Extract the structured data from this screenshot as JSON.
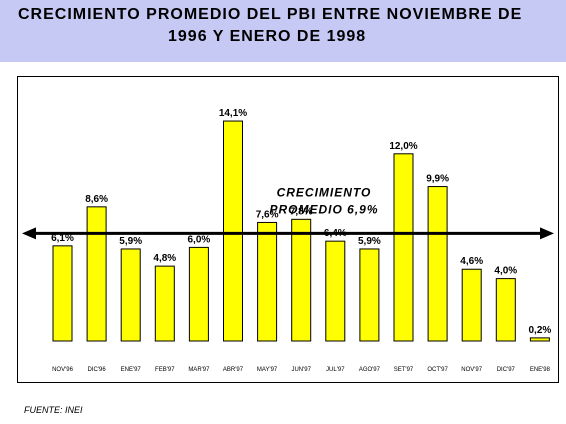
{
  "title": {
    "line1": "CRECIMIENTO PROMEDIO DEL PBI ENTRE NOVIEMBRE DE",
    "line2": "1996 Y ENERO DE 1998"
  },
  "source": "FUENTE: INEI",
  "colors": {
    "title_background": "#c7c9f5",
    "bar_fill": "#ffff00",
    "bar_stroke": "#000000"
  },
  "chart_data": {
    "type": "bar",
    "categories": [
      "NOV'96",
      "DIC'96",
      "ENE'97",
      "FEB'97",
      "MAR'97",
      "ABR'97",
      "MAY'97",
      "JUN'97",
      "JUL'97",
      "AGO'97",
      "SET'97",
      "OCT'97",
      "NOV'97",
      "DIC'97",
      "ENE'98"
    ],
    "values": [
      6.1,
      8.6,
      5.9,
      4.8,
      6.0,
      14.1,
      7.6,
      7.8,
      6.4,
      5.9,
      12.0,
      9.9,
      4.6,
      4.0,
      0.2
    ],
    "value_labels": [
      "6,1%",
      "8,6%",
      "5,9%",
      "4,8%",
      "6,0%",
      "14,1%",
      "7,6%",
      "7,8%",
      "6,4%",
      "5,9%",
      "12,0%",
      "9,9%",
      "4,6%",
      "4,0%",
      "0,2%"
    ],
    "average": {
      "value": 6.9,
      "label_line1": "CRECIMIENTO",
      "label_line2": "PROMEDIO 6,9%"
    },
    "ylim": [
      0,
      15
    ],
    "xlabel": "",
    "ylabel": "",
    "grid": false,
    "legend": "none"
  }
}
